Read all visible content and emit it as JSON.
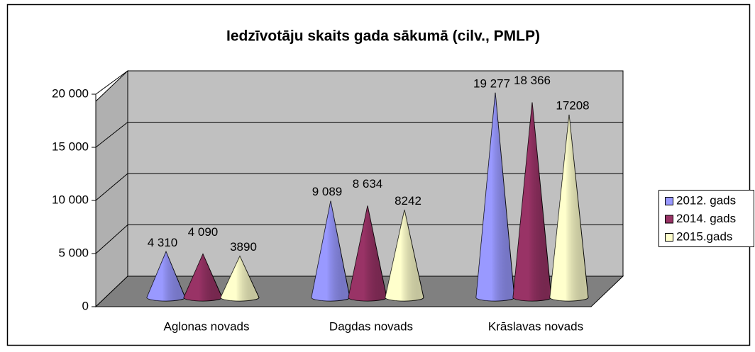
{
  "chart_data": {
    "type": "cone3d",
    "title": "Iedzīvotāju skaits gada sākumā (cilv., PMLP)",
    "categories": [
      "Aglonas novads",
      "Dagdas novads",
      "Krāslavas novads"
    ],
    "series": [
      {
        "name": "2012. gads",
        "color": "#9999ff",
        "values": [
          4310,
          9089,
          19277
        ],
        "value_labels": [
          "4 310",
          "9 089",
          "19 277"
        ]
      },
      {
        "name": "2014. gads",
        "color": "#993366",
        "values": [
          4090,
          8634,
          18366
        ],
        "value_labels": [
          "4 090",
          "8 634",
          "18 366"
        ]
      },
      {
        "name": "2015.gads",
        "color": "#ffffcc",
        "values": [
          3890,
          8242,
          17208
        ]
      }
    ],
    "ylim": [
      0,
      20000
    ],
    "yticks": [
      0,
      {
        "value": 5000,
        "label": "5 000"
      },
      {
        "value": 10000,
        "label": "10 000"
      },
      {
        "value": 15000,
        "label": "15 000"
      },
      {
        "value": 20000,
        "label": "20 000"
      }
    ],
    "grid": true,
    "legend": "right"
  }
}
